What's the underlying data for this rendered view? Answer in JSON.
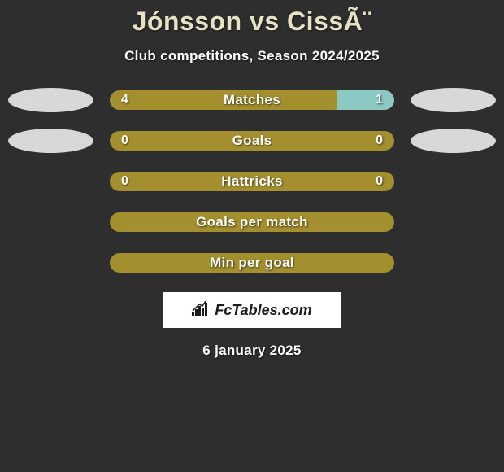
{
  "title": "Jónsson vs CissÃ¨",
  "subtitle": "Club competitions, Season 2024/2025",
  "stats": [
    {
      "label": "Matches",
      "left_value": "4",
      "right_value": "1",
      "left_pct": 80,
      "right_pct": 20,
      "left_color": "#a38f2e",
      "right_color": "#8cc9c3",
      "show_left_ellipse": true,
      "show_right_ellipse": true
    },
    {
      "label": "Goals",
      "left_value": "0",
      "right_value": "0",
      "left_pct": 100,
      "right_pct": 0,
      "left_color": "#a38f2e",
      "right_color": "#8cc9c3",
      "show_left_ellipse": true,
      "show_right_ellipse": true
    },
    {
      "label": "Hattricks",
      "left_value": "0",
      "right_value": "0",
      "left_pct": 100,
      "right_pct": 0,
      "left_color": "#a38f2e",
      "right_color": "#8cc9c3",
      "show_left_ellipse": false,
      "show_right_ellipse": false
    },
    {
      "label": "Goals per match",
      "left_value": "",
      "right_value": "",
      "left_pct": 100,
      "right_pct": 0,
      "left_color": "#a38f2e",
      "right_color": "#8cc9c3",
      "show_left_ellipse": false,
      "show_right_ellipse": false
    },
    {
      "label": "Min per goal",
      "left_value": "",
      "right_value": "",
      "left_pct": 100,
      "right_pct": 0,
      "left_color": "#a38f2e",
      "right_color": "#8cc9c3",
      "show_left_ellipse": false,
      "show_right_ellipse": false
    }
  ],
  "logo_text": "FcTables.com",
  "date_text": "6 january 2025",
  "colors": {
    "background": "#2e2e2e",
    "title_color": "#e8e2c4",
    "text_color": "#ffffff",
    "ellipse_color": "#d8d8d8",
    "logo_bg": "#ffffff",
    "logo_text": "#1a1a1a"
  }
}
